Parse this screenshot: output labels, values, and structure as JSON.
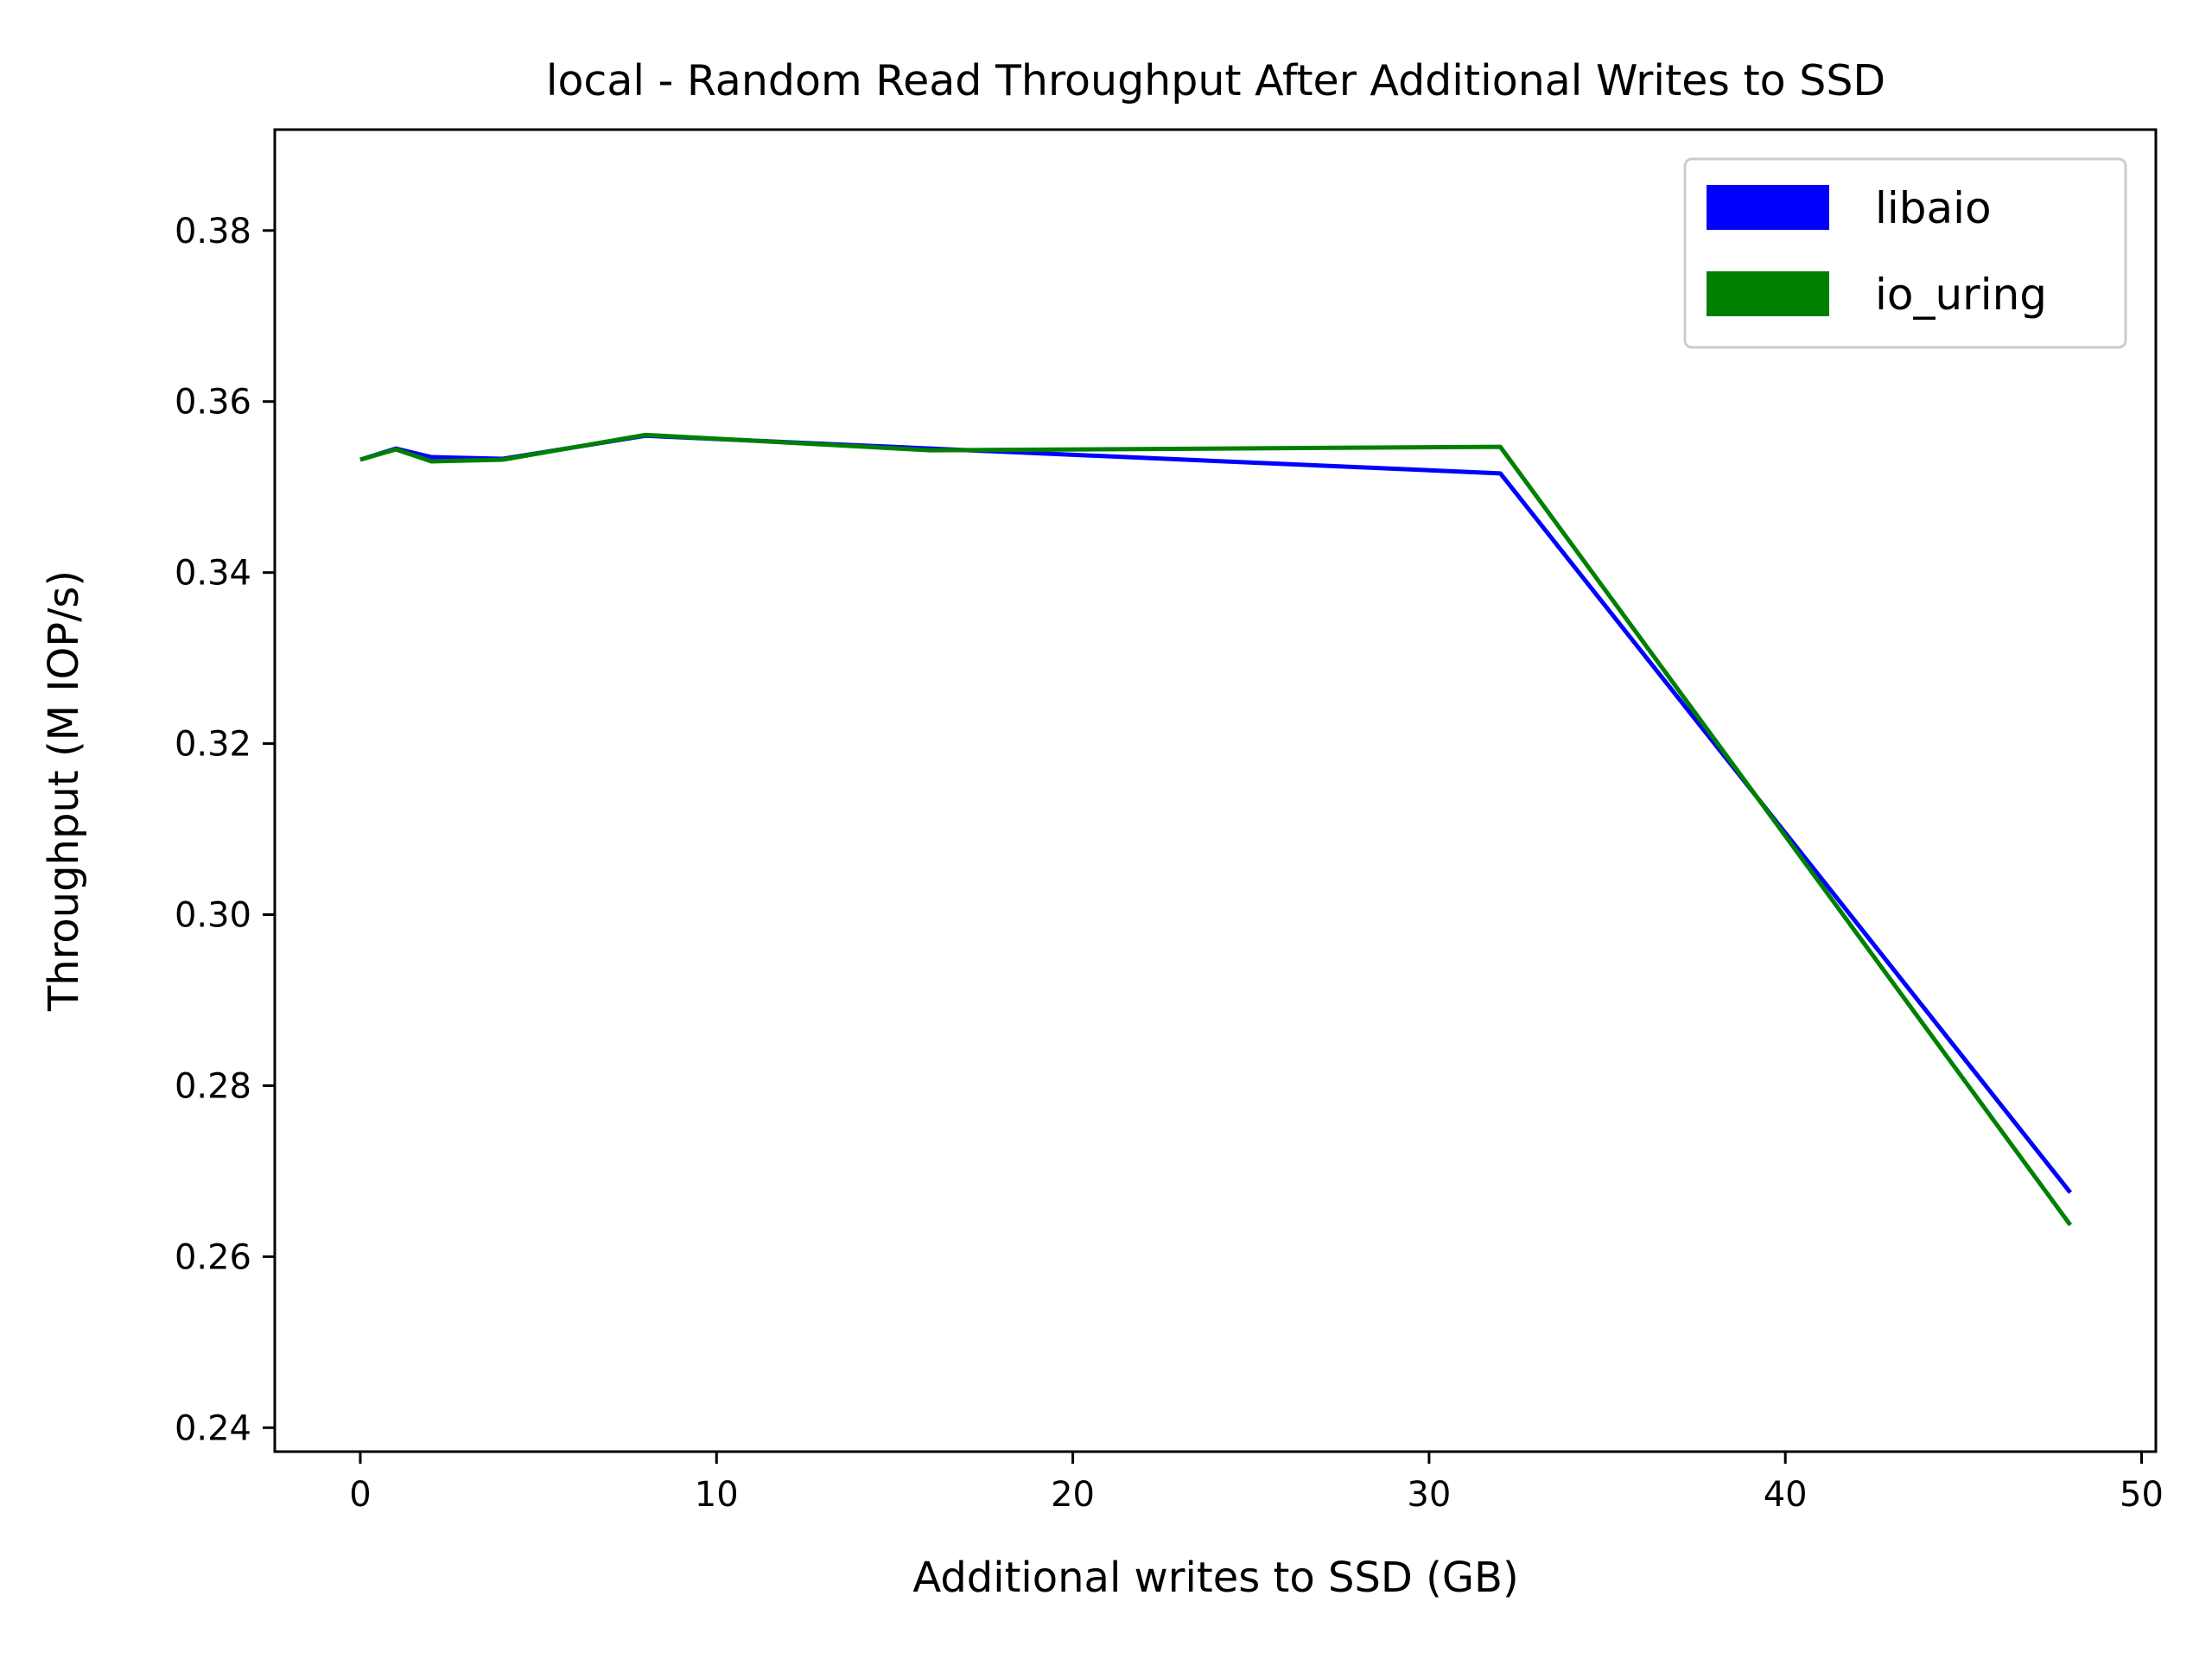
{
  "chart_data": {
    "type": "line",
    "title": "local - Random Read Throughput After Additional Writes to SSD",
    "xlabel": "Additional writes to SSD (GB)",
    "ylabel": "Throughput (M IOP/s)",
    "xlim": [
      -2.4,
      50.4
    ],
    "ylim": [
      0.2372,
      0.3918
    ],
    "xticks": [
      0,
      10,
      20,
      30,
      40,
      50
    ],
    "xtick_labels": [
      "0",
      "10",
      "20",
      "30",
      "40",
      "50"
    ],
    "yticks": [
      0.24,
      0.26,
      0.28,
      0.3,
      0.32,
      0.34,
      0.36,
      0.38
    ],
    "ytick_labels": [
      "0.24",
      "0.26",
      "0.28",
      "0.30",
      "0.32",
      "0.34",
      "0.36",
      "0.38"
    ],
    "grid": false,
    "legend_position": "top-right",
    "series": [
      {
        "name": "libaio",
        "color": "#0000ff",
        "x": [
          0,
          1,
          2,
          4,
          8,
          16,
          32,
          48
        ],
        "y": [
          0.3532,
          0.3545,
          0.3535,
          0.3533,
          0.356,
          0.3545,
          0.3516,
          0.2675
        ]
      },
      {
        "name": "io_uring",
        "color": "#008000",
        "x": [
          0,
          1,
          2,
          4,
          8,
          16,
          32,
          48
        ],
        "y": [
          0.3532,
          0.3544,
          0.353,
          0.3532,
          0.3561,
          0.3543,
          0.3547,
          0.2637
        ]
      }
    ]
  }
}
